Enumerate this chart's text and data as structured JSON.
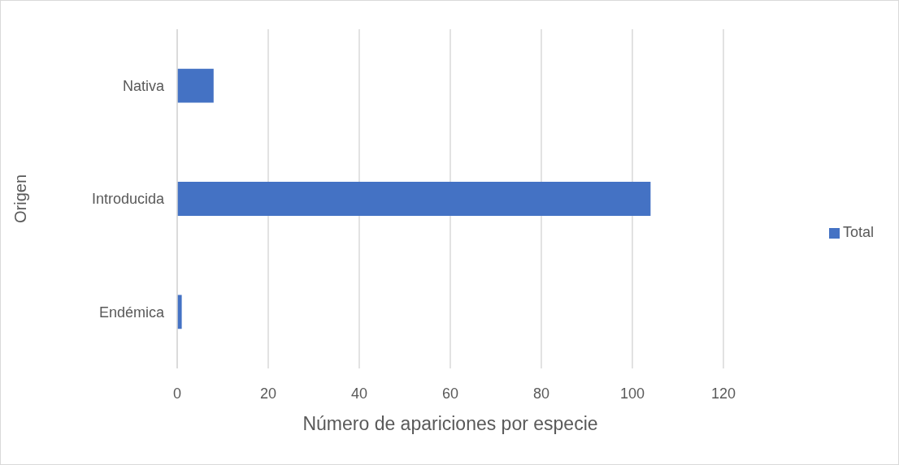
{
  "chart_data": {
    "type": "bar",
    "orientation": "horizontal",
    "xlabel": "Número de apariciones por especie",
    "ylabel": "Origen",
    "categories": [
      "Nativa",
      "Introducida",
      "Endémica"
    ],
    "series": [
      {
        "name": "Total",
        "color": "#4472c4",
        "values": [
          8,
          104,
          1
        ]
      }
    ],
    "xlim": [
      0,
      120
    ],
    "xticks": [
      0,
      20,
      40,
      60,
      80,
      100,
      120
    ],
    "grid": "x",
    "legend": "right"
  }
}
